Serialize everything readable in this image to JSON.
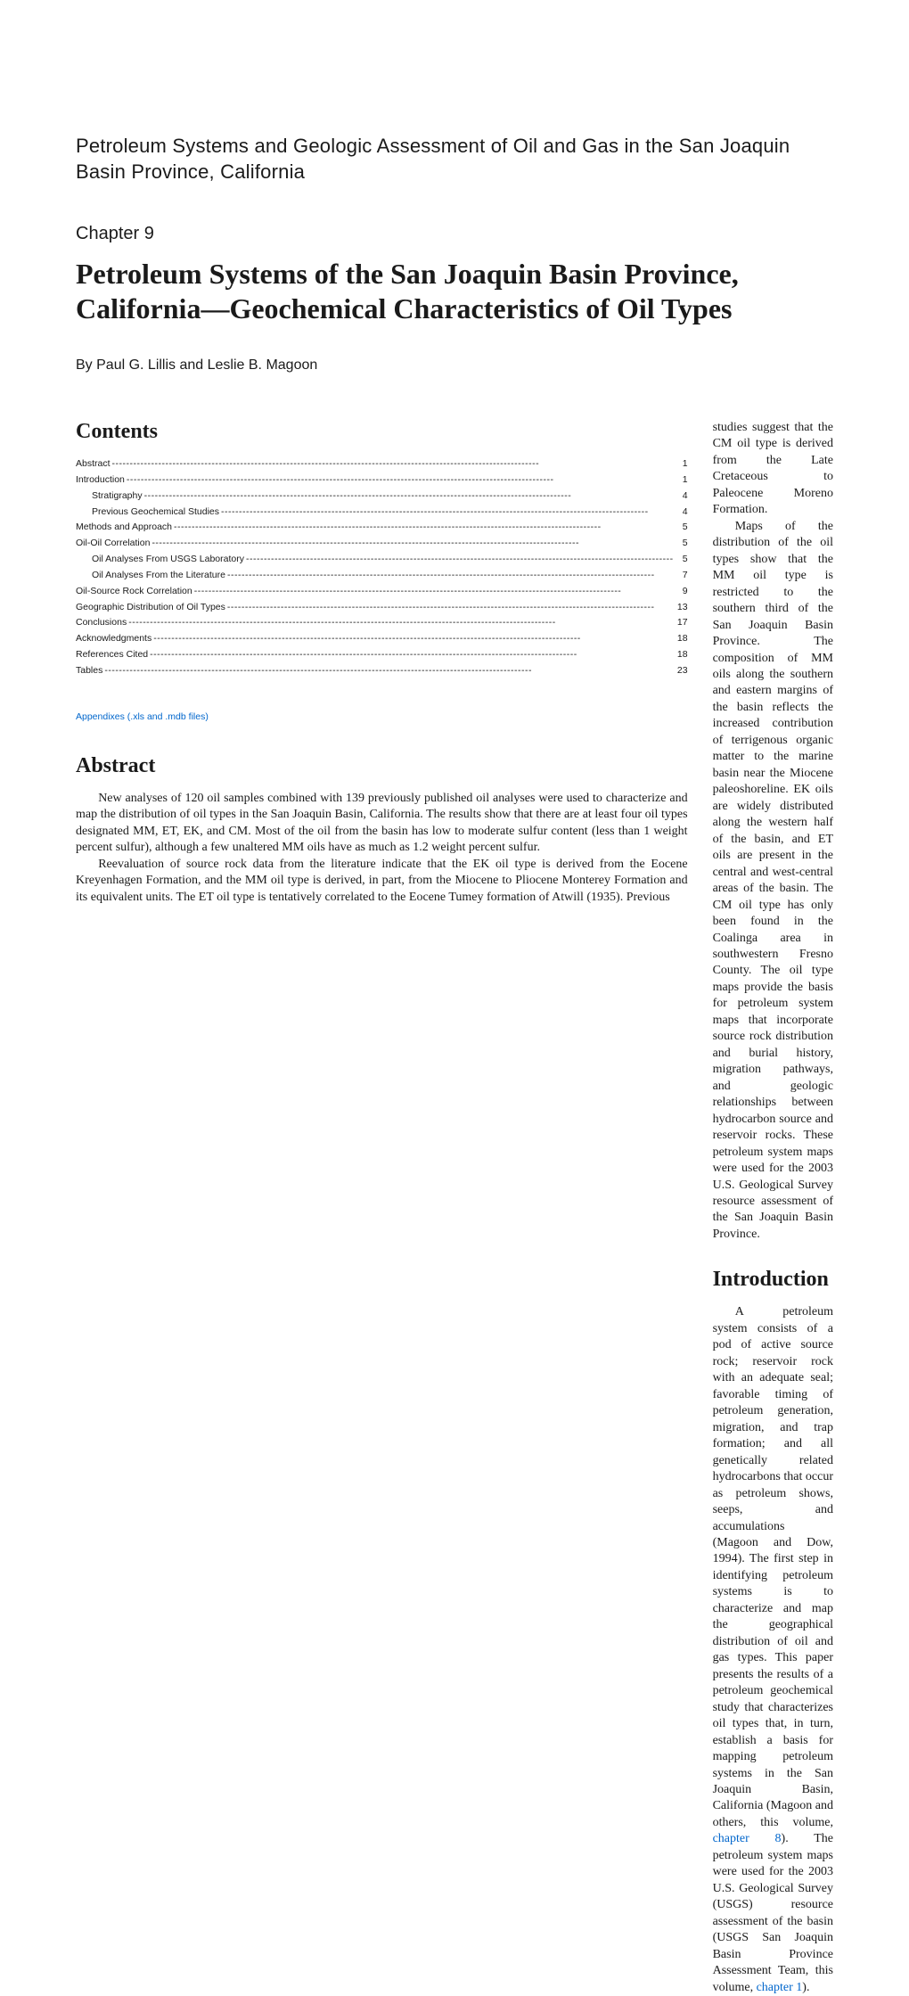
{
  "supertitle": "Petroleum Systems and Geologic Assessment of Oil and Gas in the San Joaquin Basin Province, California",
  "chapter_label": "Chapter 9",
  "main_title": "Petroleum Systems of the San Joaquin Basin Province, California—Geochemical Characteristics of Oil Types",
  "byline": "By Paul G. Lillis and Leslie B. Magoon",
  "contents_heading": "Contents",
  "abstract_heading": "Abstract",
  "introduction_heading": "Introduction",
  "toc": [
    {
      "label": "Abstract",
      "page": "1",
      "indent": 0
    },
    {
      "label": "Introduction",
      "page": "1",
      "indent": 0
    },
    {
      "label": "Stratigraphy",
      "page": "4",
      "indent": 1
    },
    {
      "label": "Previous Geochemical Studies",
      "page": "4",
      "indent": 1
    },
    {
      "label": "Methods and Approach",
      "page": "5",
      "indent": 0
    },
    {
      "label": "Oil-Oil Correlation",
      "page": "5",
      "indent": 0
    },
    {
      "label": "Oil Analyses From USGS Laboratory",
      "page": "5",
      "indent": 1
    },
    {
      "label": "Oil Analyses From the Literature",
      "page": "7",
      "indent": 1
    },
    {
      "label": "Oil-Source Rock Correlation",
      "page": "9",
      "indent": 0
    },
    {
      "label": "Geographic Distribution of Oil Types",
      "page": "13",
      "indent": 0
    },
    {
      "label": "Conclusions",
      "page": "17",
      "indent": 0
    },
    {
      "label": "Acknowledgments",
      "page": "18",
      "indent": 0
    },
    {
      "label": "References Cited",
      "page": "18",
      "indent": 0
    },
    {
      "label": "Tables",
      "page": "23",
      "indent": 0
    }
  ],
  "appendix_link": "Appendixes (.xls and .mdb files)",
  "abstract_p1": "New analyses of 120 oil samples combined with 139 previously published oil analyses were used to characterize and map the distribution of oil types in the San Joaquin Basin, California. The results show that there are at least four oil types designated MM, ET, EK, and CM.  Most of the oil from the basin has low to moderate sulfur content (less than 1 weight percent sulfur), although a few unaltered MM oils have as much as 1.2 weight percent sulfur.",
  "abstract_p2": "Reevaluation of source rock data from the literature indicate that the EK oil type is derived from the Eocene Kreyenhagen Formation, and the MM oil type is derived, in part, from the Miocene to Pliocene Monterey Formation and its equivalent units. The ET oil type is tentatively correlated to the Eocene Tumey formation of Atwill (1935).  Previous",
  "right_p1": "studies suggest that the CM oil type is derived from the Late Cretaceous to Paleocene Moreno Formation.",
  "right_p2": "Maps of the distribution of the oil types show that the MM oil type is restricted to the southern third of the San Joaquin Basin Province. The composition of MM oils along the southern and eastern margins of the basin reflects the increased contribution of terrigenous organic matter to the marine basin near the Miocene paleoshoreline. EK oils are widely distributed along the western half of the basin, and ET oils are present in the central and west-central areas of the basin. The CM oil type has only been found in the Coalinga area in southwestern Fresno County. The oil type maps provide the basis for petroleum system maps that incorporate source rock distribution and burial history, migration pathways, and geologic relationships between hydrocarbon source and reservoir rocks. These petroleum system maps were used for the 2003 U.S. Geological Survey resource assessment of the San Joaquin Basin Province.",
  "intro_p1_a": "A petroleum system consists of a pod of active source rock; reservoir rock with an adequate seal; favorable timing of petroleum generation, migration, and trap formation; and all genetically related hydrocarbons that occur as petroleum shows, seeps, and accumulations (Magoon and Dow, 1994). The first step in identifying petroleum systems is to characterize and map the geographical distribution of oil and gas types. This paper presents the results of a petroleum geochemical study that characterizes oil types that, in turn, establish a basis for mapping petroleum systems in the San Joaquin Basin, California (Magoon and others, this volume, ",
  "intro_link1": "chapter 8",
  "intro_p1_b": "). The petroleum system maps were used for the 2003 U.S. Geological Survey (USGS) resource assessment of the basin (USGS San Joaquin Basin Province Assessment Team, this volume, ",
  "intro_link2": "chapter 1",
  "intro_p1_c": ").",
  "colors": {
    "text": "#1a1a1a",
    "link": "#0066cc",
    "background": "#ffffff"
  }
}
